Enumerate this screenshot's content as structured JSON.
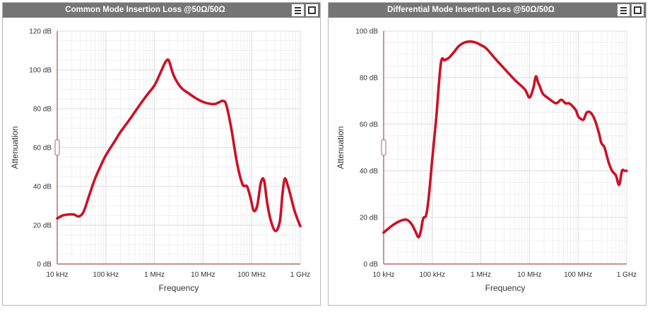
{
  "chart_data": [
    {
      "type": "line",
      "title": "Common Mode Insertion Loss @50Ω/50Ω",
      "xlabel": "Frequency",
      "ylabel": "Attenuation",
      "x_scale": "log",
      "xlim_hz": [
        10000,
        1000000000
      ],
      "ylim": [
        0,
        120
      ],
      "y_unit": "dB",
      "y_ticks": [
        0,
        20,
        40,
        60,
        80,
        100,
        120
      ],
      "y_tick_labels": [
        "0 dB",
        "20 dB",
        "40 dB",
        "60 dB",
        "80 dB",
        "100 dB",
        "120 dB"
      ],
      "x_ticks_hz": [
        10000,
        100000,
        1000000,
        10000000,
        100000000,
        1000000000
      ],
      "x_tick_labels": [
        "10 kHz",
        "100 kHz",
        "1 MHz",
        "10 MHz",
        "100 MHz",
        "1 GHz"
      ],
      "grid": true,
      "line_color": "#cc1126",
      "series": [
        {
          "x": [
            10000,
            13000,
            17000,
            22000,
            28000,
            35000,
            45000,
            60000,
            80000,
            100000,
            150000,
            200000,
            300000,
            500000,
            700000,
            1000000,
            1300000,
            1600000,
            1800000,
            2000000,
            2500000,
            3500000,
            5000000,
            7000000,
            10000000,
            14000000,
            18000000,
            22000000,
            26000000,
            30000000,
            38000000,
            50000000,
            65000000,
            80000000,
            95000000,
            110000000,
            130000000,
            155000000,
            180000000,
            210000000,
            250000000,
            310000000,
            380000000,
            430000000,
            480000000,
            560000000,
            650000000,
            750000000,
            850000000,
            1000000000
          ],
          "y": [
            23.5,
            25,
            25.5,
            25.5,
            24.5,
            27,
            35,
            44,
            51,
            56,
            63,
            68,
            74,
            82,
            87,
            92,
            98,
            103,
            105,
            104.5,
            97,
            91,
            88,
            85.5,
            83.5,
            82.5,
            82.5,
            83.5,
            84,
            82,
            70,
            52,
            41,
            40,
            34,
            27.5,
            30,
            42,
            43,
            31,
            22,
            17,
            22,
            36,
            44,
            40,
            34,
            28,
            24,
            19.5
          ]
        }
      ]
    },
    {
      "type": "line",
      "title": "Differential Mode Insertion Loss @50Ω/50Ω",
      "xlabel": "Frequency",
      "ylabel": "Attenuation",
      "x_scale": "log",
      "xlim_hz": [
        10000,
        1000000000
      ],
      "ylim": [
        0,
        100
      ],
      "y_unit": "dB",
      "y_ticks": [
        0,
        20,
        40,
        60,
        80,
        100
      ],
      "y_tick_labels": [
        "0 dB",
        "20 dB",
        "40 dB",
        "60 dB",
        "80 dB",
        "100 dB"
      ],
      "x_ticks_hz": [
        10000,
        100000,
        1000000,
        10000000,
        100000000,
        1000000000
      ],
      "x_tick_labels": [
        "10 kHz",
        "100 kHz",
        "1 MHz",
        "10 MHz",
        "100 MHz",
        "1 GHz"
      ],
      "grid": true,
      "line_color": "#cc1126",
      "series": [
        {
          "x": [
            10000,
            15000,
            22000,
            30000,
            38000,
            45000,
            52000,
            58000,
            65000,
            75000,
            85000,
            100000,
            120000,
            150000,
            180000,
            220000,
            280000,
            350000,
            450000,
            600000,
            800000,
            1000000,
            1300000,
            2000000,
            3000000,
            5000000,
            8000000,
            10000000,
            12000000,
            13500000,
            15000000,
            16500000,
            19000000,
            25000000,
            35000000,
            45000000,
            55000000,
            65000000,
            75000000,
            90000000,
            100000000,
            110000000,
            130000000,
            150000000,
            180000000,
            220000000,
            270000000,
            300000000,
            350000000,
            420000000,
            500000000,
            600000000,
            700000000,
            800000000,
            900000000,
            1000000000
          ],
          "y": [
            13.5,
            16.5,
            18.5,
            19,
            17,
            14,
            11.5,
            14,
            19.5,
            21,
            29,
            45,
            62,
            86,
            87.5,
            88.5,
            91,
            93.5,
            95,
            95.5,
            95,
            94,
            92.5,
            88,
            84,
            79,
            75,
            71.5,
            75.5,
            80.5,
            78,
            76,
            73,
            71,
            69,
            70.5,
            69,
            69,
            68,
            66,
            63.5,
            62.5,
            62,
            65,
            65,
            62,
            56,
            52,
            50,
            44,
            40,
            38,
            34,
            40,
            40,
            40
          ]
        }
      ]
    }
  ]
}
